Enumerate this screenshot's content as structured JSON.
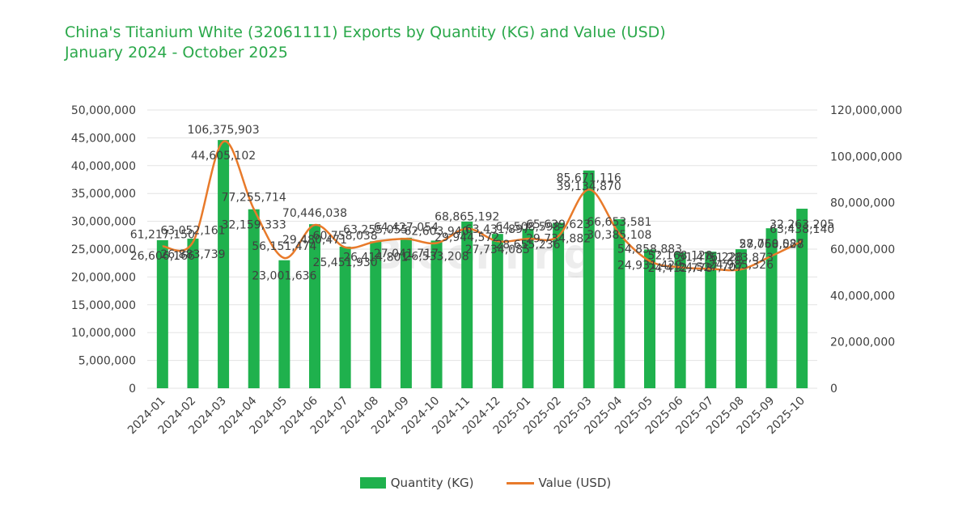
{
  "title": "China's Titanium White (32061111) Exports by Quantity (KG) and Value (USD)",
  "subtitle": "January 2024 - October 2025",
  "watermark": "Blooming",
  "colors": {
    "title": "#2aa84a",
    "bar": "#1fb14d",
    "line": "#e87a2a",
    "grid": "#e3e3e3",
    "text": "#404040"
  },
  "chart_data": {
    "type": "bar",
    "categories": [
      "2024-01",
      "2024-02",
      "2024-03",
      "2024-04",
      "2024-05",
      "2024-06",
      "2024-07",
      "2024-08",
      "2024-09",
      "2024-10",
      "2024-11",
      "2024-12",
      "2025-01",
      "2025-02",
      "2025-03",
      "2025-04",
      "2025-05",
      "2025-06",
      "2025-07",
      "2025-08",
      "2025-09",
      "2025-10"
    ],
    "series": [
      {
        "name": "Quantity (KG)",
        "type": "bar",
        "axis": "left",
        "values": [
          26606166,
          26883739,
          44605102,
          32159333,
          23001636,
          29480471,
          25451930,
          26414801,
          27041717,
          26533208,
          29944572,
          27734085,
          28655236,
          29734882,
          39134870,
          30385108,
          24931429,
          24412778,
          24527707,
          24985326,
          28750087,
          32263205
        ],
        "labels": [
          "26,606,166",
          "26,883,739",
          "44,605,102",
          "32,159,333",
          "23,001,636",
          "29,480,471",
          "25,451,930",
          "26,414,801",
          "27,041,717",
          "26,533,208",
          "29,944,572",
          "27,734,085",
          "28,655,236",
          "29,734,882",
          "39,134,870",
          "30,385,108",
          "24,931,429",
          "24,412,778",
          "24,527,707",
          "24,985,326",
          "28,750,087",
          "32,263,205"
        ]
      },
      {
        "name": "Value (USD)",
        "type": "line",
        "axis": "right",
        "values": [
          61217150,
          63052161,
          106375903,
          77255714,
          56151474,
          70446038,
          60758038,
          63255055,
          64427054,
          62603940,
          68865192,
          63431897,
          64508598,
          65639623,
          85671116,
          66653581,
          54858883,
          52168128,
          51476228,
          51283873,
          57068528,
          63438140
        ],
        "labels": [
          "61,217,150",
          "63,052,161",
          "106,375,903",
          "77,255,714",
          "56,151,474",
          "70,446,038",
          "60,758,038",
          "63,255,055",
          "64,427,054",
          "62,603,940",
          "68,865,192",
          "63,431,897",
          "64,508,598",
          "65,639,623",
          "85,671,116",
          "66,653,581",
          "54,858,883",
          "52,168,128",
          "51,476,228",
          "51,283,873",
          "57,068,528",
          "63,438,140"
        ]
      }
    ],
    "ylim_left": [
      0,
      50000000
    ],
    "ylim_right": [
      0,
      120000000
    ],
    "yticks_left": [
      "0",
      "5,000,000",
      "10,000,000",
      "15,000,000",
      "20,000,000",
      "25,000,000",
      "30,000,000",
      "35,000,000",
      "40,000,000",
      "45,000,000",
      "50,000,000"
    ],
    "yticks_right": [
      "0",
      "20,000,000",
      "40,000,000",
      "60,000,000",
      "80,000,000",
      "100,000,000",
      "120,000,000"
    ],
    "grid": true,
    "legend_position": "bottom"
  }
}
